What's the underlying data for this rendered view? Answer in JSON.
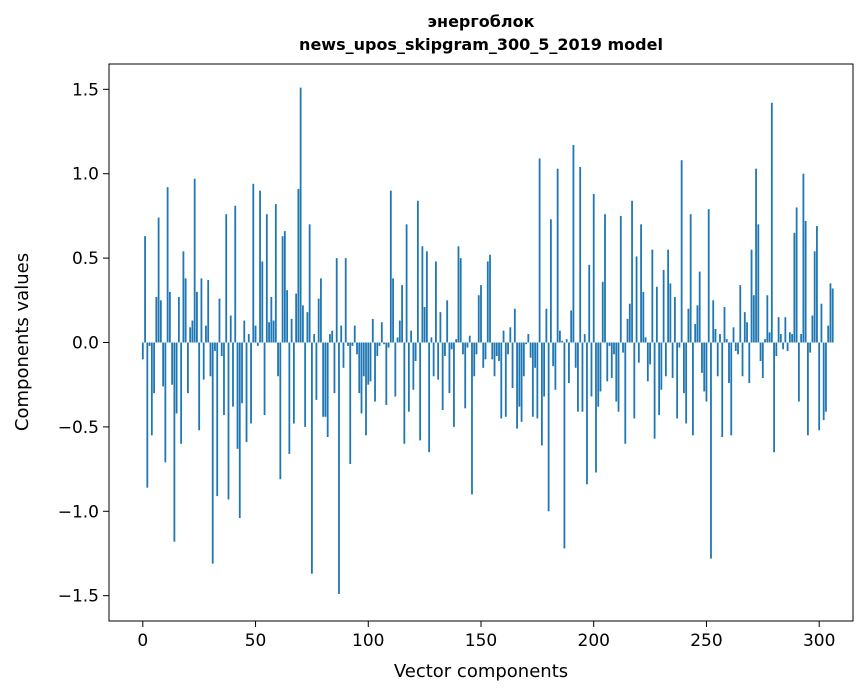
{
  "chart_data": {
    "type": "bar",
    "title": "энергоблок",
    "subtitle": "news_upos_skipgram_300_5_2019 model",
    "xlabel": "Vector components",
    "ylabel": "Components values",
    "xlim": [
      -15,
      315
    ],
    "ylim": [
      -1.65,
      1.65
    ],
    "x_ticks": [
      0,
      50,
      100,
      150,
      200,
      250,
      300
    ],
    "x_tick_labels": [
      "0",
      "50",
      "100",
      "150",
      "200",
      "250",
      "300"
    ],
    "y_ticks": [
      1.5,
      1.0,
      0.5,
      0.0,
      -0.5,
      -1.0,
      -1.5
    ],
    "y_tick_labels": [
      "1.5",
      "1.0",
      "0.5",
      "0.0",
      "−0.5",
      "−1.0",
      "−1.5"
    ],
    "grid": false,
    "color": "#1f77b4",
    "x_start": 0,
    "values": [
      -0.1,
      0.63,
      -0.86,
      -0.02,
      -0.55,
      -0.3,
      0.27,
      0.74,
      0.25,
      -0.26,
      -0.71,
      0.92,
      0.3,
      -0.25,
      -1.18,
      -0.42,
      0.27,
      -0.6,
      0.54,
      0.38,
      -0.3,
      0.09,
      0.13,
      0.97,
      0.3,
      -0.52,
      0.38,
      -0.22,
      0.1,
      0.37,
      -0.2,
      -1.31,
      -0.05,
      -0.91,
      0.26,
      -0.08,
      -0.43,
      0.76,
      -0.93,
      0.16,
      -0.38,
      0.81,
      -0.63,
      -1.04,
      -0.36,
      0.13,
      -0.59,
      0.05,
      -0.48,
      0.94,
      0.1,
      -0.02,
      0.9,
      0.48,
      -0.43,
      0.76,
      0.12,
      0.27,
      0.13,
      0.82,
      -0.2,
      -0.81,
      0.63,
      0.66,
      0.31,
      -0.66,
      0.14,
      -0.48,
      0.29,
      0.91,
      1.51,
      0.22,
      -0.5,
      0.18,
      0.7,
      -1.37,
      0.05,
      -0.34,
      0.26,
      0.38,
      -0.44,
      -0.44,
      -0.56,
      0.05,
      0.07,
      -0.3,
      0.5,
      -1.49,
      0.1,
      -0.15,
      0.5,
      -0.02,
      -0.72,
      -0.02,
      0.1,
      -0.07,
      -0.3,
      -0.42,
      -0.2,
      -0.55,
      -0.25,
      -0.23,
      0.14,
      -0.35,
      -0.08,
      -0.02,
      0.12,
      -0.01,
      -0.37,
      -0.03,
      0.9,
      0.38,
      -0.32,
      0.03,
      0.13,
      0.34,
      -0.6,
      0.7,
      -0.41,
      0.07,
      -0.28,
      -0.11,
      0.84,
      -0.58,
      0.57,
      0.21,
      0.54,
      -0.65,
      0.03,
      -0.2,
      0.48,
      -0.22,
      0.18,
      -0.4,
      -0.08,
      0.25,
      -0.3,
      -0.04,
      -0.5,
      0.02,
      0.57,
      0.5,
      -0.07,
      -0.39,
      -0.03,
      0.04,
      -0.9,
      -0.2,
      -0.07,
      0.28,
      0.34,
      -0.15,
      -0.1,
      0.48,
      0.52,
      -0.1,
      -0.2,
      -0.08,
      -0.11,
      -0.45,
      0.07,
      -0.44,
      -0.07,
      0.09,
      -0.27,
      0.2,
      -0.51,
      -0.38,
      -0.47,
      -0.2,
      -0.01,
      0.05,
      -0.09,
      -0.44,
      -0.15,
      -0.45,
      1.09,
      -0.61,
      -0.32,
      0.2,
      -1.0,
      0.73,
      -0.14,
      -0.28,
      1.03,
      0.07,
      0.01,
      -1.22,
      0.02,
      -0.24,
      0.19,
      1.17,
      -0.15,
      -0.41,
      1.04,
      -0.41,
      0.05,
      -0.84,
      0.46,
      -0.32,
      0.88,
      -0.77,
      -0.38,
      -0.29,
      0.36,
      0.76,
      -0.23,
      -0.02,
      -0.21,
      -0.07,
      -0.35,
      -0.41,
      0.75,
      -0.06,
      -0.6,
      0.14,
      0.23,
      0.84,
      -0.45,
      0.51,
      -0.12,
      0.7,
      0.3,
      0.03,
      -0.23,
      -0.13,
      0.55,
      -0.57,
      0.33,
      -0.43,
      -0.28,
      0.43,
      -0.2,
      0.55,
      0.35,
      -0.21,
      0.27,
      -0.45,
      -0.03,
      1.08,
      -0.3,
      -0.48,
      0.2,
      0.76,
      -0.55,
      0.11,
      0.22,
      0.42,
      -0.18,
      -0.29,
      -0.35,
      0.79,
      -1.28,
      0.25,
      0.08,
      -0.2,
      0.05,
      -0.56,
      0.21,
      0.02,
      -0.24,
      -0.55,
      0.09,
      -0.05,
      -0.07,
      0.34,
      -0.2,
      0.18,
      0.12,
      -0.24,
      0.55,
      0.28,
      1.03,
      0.7,
      -0.11,
      -0.21,
      0.02,
      0.28,
      0.06,
      1.42,
      -0.65,
      -0.08,
      0.15,
      0.05,
      -0.04,
      0.15,
      -0.05,
      0.06,
      0.05,
      0.65,
      0.8,
      -0.35,
      0.05,
      1.0,
      0.72,
      -0.55,
      -0.06,
      0.16,
      0.54,
      0.69,
      -0.52,
      0.23,
      -0.46,
      -0.41,
      0.1,
      0.35,
      0.32
    ]
  }
}
